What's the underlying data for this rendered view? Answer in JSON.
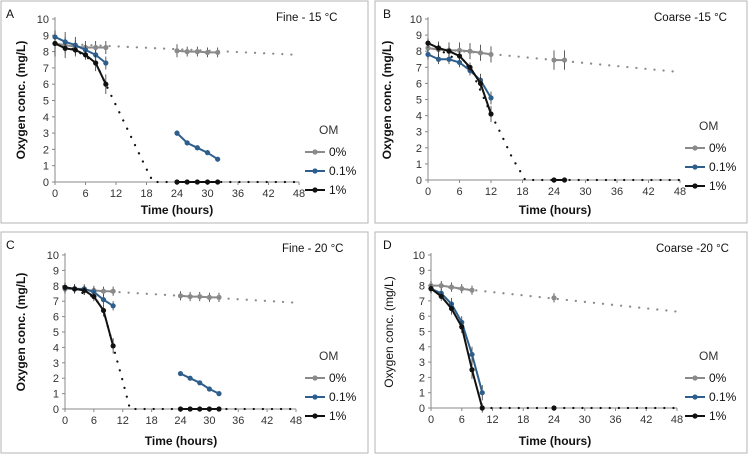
{
  "colors": {
    "s0": "#8a8a8a",
    "s01": "#2e5f8c",
    "s1": "#111111",
    "frame": "#b5b5b5"
  },
  "chart_data": [
    {
      "panel": "A",
      "title": "Fine -  15 °C",
      "type": "line",
      "xlabel": "Time (hours)",
      "ylabel": "Oxygen conc. (mg/L)",
      "xlim": [
        0,
        48
      ],
      "ylim": [
        0,
        10
      ],
      "xticks": [
        0,
        6,
        12,
        18,
        24,
        30,
        36,
        42,
        48
      ],
      "yticks": [
        0,
        1,
        2,
        3,
        4,
        5,
        6,
        7,
        8,
        9,
        10
      ],
      "legend_title": "OM",
      "series": [
        {
          "name": "0%",
          "key": "s0",
          "segments": [
            [
              [
                0,
                8.5
              ],
              [
                2,
                8.4
              ],
              [
                4,
                8.3
              ],
              [
                6,
                8.25
              ],
              [
                8,
                8.25
              ],
              [
                10,
                8.25
              ]
            ],
            [
              [
                24,
                8.05
              ],
              [
                26,
                8.0
              ],
              [
                28,
                8.0
              ],
              [
                30,
                7.95
              ],
              [
                32,
                7.95
              ]
            ]
          ],
          "trend": [
            [
              0,
              8.5
            ],
            [
              48,
              7.8
            ]
          ],
          "errors": [
            8,
            8,
            6,
            4,
            4,
            4,
            4,
            3,
            3,
            3,
            3
          ]
        },
        {
          "name": "0.1%",
          "key": "s01",
          "segments": [
            [
              [
                0,
                8.9
              ],
              [
                2,
                8.6
              ],
              [
                4,
                8.4
              ],
              [
                6,
                8.1
              ],
              [
                8,
                7.8
              ],
              [
                10,
                7.3
              ]
            ],
            [
              [
                24,
                3.0
              ],
              [
                26,
                2.4
              ],
              [
                28,
                2.1
              ],
              [
                30,
                1.8
              ],
              [
                32,
                1.4
              ]
            ]
          ],
          "trend": null,
          "errors": [
            3,
            3,
            3,
            3,
            3,
            4,
            1.7,
            1.4,
            1.4,
            1.3,
            0.7
          ]
        },
        {
          "name": "1%",
          "key": "s1",
          "segments": [
            [
              [
                0,
                8.5
              ],
              [
                2,
                8.2
              ],
              [
                4,
                8.1
              ],
              [
                6,
                7.8
              ],
              [
                8,
                7.3
              ],
              [
                10,
                6.0
              ]
            ],
            [
              [
                24,
                0
              ],
              [
                26,
                0
              ],
              [
                28,
                0
              ],
              [
                30,
                0
              ],
              [
                32,
                0
              ]
            ]
          ],
          "trend": [
            [
              0,
              8.5
            ],
            [
              4,
              8.1
            ],
            [
              8,
              7.3
            ],
            [
              10,
              6.0
            ],
            [
              12,
              4.7
            ],
            [
              14,
              3.4
            ],
            [
              16,
              2.1
            ],
            [
              18,
              0.8
            ],
            [
              19.3,
              0
            ],
            [
              48,
              0
            ]
          ],
          "errors": [
            3,
            3,
            3,
            3,
            5,
            6,
            0,
            0,
            0,
            0,
            0
          ]
        }
      ]
    },
    {
      "panel": "B",
      "title": "Coarse -15 °C",
      "type": "line",
      "xlabel": "Time (hours)",
      "ylabel": "Oxygen conc. (mg/L)",
      "xlim": [
        0,
        48
      ],
      "ylim": [
        0,
        10
      ],
      "xticks": [
        0,
        6,
        12,
        18,
        24,
        30,
        36,
        42,
        48
      ],
      "yticks": [
        0,
        1,
        2,
        3,
        4,
        5,
        6,
        7,
        8,
        9,
        10
      ],
      "legend_title": "OM",
      "series": [
        {
          "name": "0%",
          "key": "s0",
          "segments": [
            [
              [
                0,
                8.2
              ],
              [
                2,
                8.1
              ],
              [
                4,
                8.05
              ],
              [
                6,
                8.05
              ],
              [
                8,
                8.0
              ],
              [
                10,
                7.9
              ],
              [
                12,
                7.8
              ]
            ],
            [
              [
                24,
                7.45
              ],
              [
                26,
                7.45
              ]
            ]
          ],
          "trend": [
            [
              0,
              8.2
            ],
            [
              48,
              6.7
            ]
          ],
          "errors": [
            5,
            5,
            5,
            5,
            5,
            5,
            5,
            6,
            6
          ]
        },
        {
          "name": "0.1%",
          "key": "s01",
          "segments": [
            [
              [
                0,
                7.8
              ],
              [
                2,
                7.5
              ],
              [
                4,
                7.5
              ],
              [
                6,
                7.3
              ],
              [
                8,
                6.8
              ],
              [
                10,
                6.2
              ],
              [
                12,
                5.1
              ]
            ]
          ],
          "trend": null,
          "errors": [
            3,
            3,
            3,
            3,
            3,
            4,
            4
          ]
        },
        {
          "name": "1%",
          "key": "s1",
          "segments": [
            [
              [
                0,
                8.5
              ],
              [
                2,
                8.2
              ],
              [
                4,
                8.0
              ],
              [
                6,
                7.7
              ],
              [
                8,
                7.0
              ],
              [
                10,
                6.0
              ],
              [
                12,
                4.1
              ]
            ],
            [
              [
                24,
                0
              ],
              [
                26,
                0
              ]
            ]
          ],
          "trend": [
            [
              0,
              8.5
            ],
            [
              8,
              7.0
            ],
            [
              12,
              4.1
            ],
            [
              14,
              2.8
            ],
            [
              16,
              1.4
            ],
            [
              18,
              0.3
            ],
            [
              18.5,
              0
            ],
            [
              48,
              0
            ]
          ],
          "errors": [
            3,
            3,
            3,
            3,
            3,
            4,
            5,
            0,
            0
          ]
        }
      ]
    },
    {
      "panel": "C",
      "title": "Fine - 20 °C",
      "type": "line",
      "xlabel": "Time (hours)",
      "ylabel": "Oxygen conc.  (mg/L)",
      "xlim": [
        0,
        48
      ],
      "ylim": [
        0,
        10
      ],
      "xticks": [
        0,
        6,
        12,
        18,
        24,
        30,
        36,
        42,
        48
      ],
      "yticks": [
        0,
        1,
        2,
        3,
        4,
        5,
        6,
        7,
        8,
        9,
        10
      ],
      "legend_title": "OM",
      "series": [
        {
          "name": "0%",
          "key": "s0",
          "segments": [
            [
              [
                0,
                7.8
              ],
              [
                2,
                7.8
              ],
              [
                4,
                7.7
              ],
              [
                6,
                7.7
              ],
              [
                8,
                7.65
              ],
              [
                10,
                7.65
              ]
            ],
            [
              [
                24,
                7.35
              ],
              [
                26,
                7.3
              ],
              [
                28,
                7.3
              ],
              [
                30,
                7.25
              ],
              [
                32,
                7.25
              ]
            ]
          ],
          "trend": [
            [
              0,
              7.8
            ],
            [
              48,
              6.9
            ]
          ],
          "errors": [
            3,
            3,
            3,
            3,
            3,
            3,
            3,
            3,
            3,
            3,
            3
          ]
        },
        {
          "name": "0.1%",
          "key": "s01",
          "segments": [
            [
              [
                0,
                7.9
              ],
              [
                2,
                7.8
              ],
              [
                4,
                7.8
              ],
              [
                6,
                7.6
              ],
              [
                8,
                7.1
              ],
              [
                10,
                6.7
              ]
            ],
            [
              [
                24,
                2.3
              ],
              [
                26,
                2.0
              ],
              [
                28,
                1.7
              ],
              [
                30,
                1.3
              ],
              [
                32,
                1.0
              ]
            ]
          ],
          "trend": null,
          "errors": [
            3,
            3,
            3,
            3,
            3,
            3,
            0.5,
            0.5,
            0.4,
            0.4,
            0.5
          ]
        },
        {
          "name": "1%",
          "key": "s1",
          "segments": [
            [
              [
                0,
                7.9
              ],
              [
                2,
                7.8
              ],
              [
                4,
                7.7
              ],
              [
                6,
                7.3
              ],
              [
                8,
                6.4
              ],
              [
                10,
                4.1
              ]
            ],
            [
              [
                24,
                0
              ],
              [
                26,
                0
              ],
              [
                28,
                0
              ],
              [
                30,
                0
              ],
              [
                32,
                0
              ]
            ]
          ],
          "trend": [
            [
              0,
              7.9
            ],
            [
              6,
              7.3
            ],
            [
              8,
              6.4
            ],
            [
              10,
              4.1
            ],
            [
              12,
              1.8
            ],
            [
              13.5,
              0
            ],
            [
              48,
              0
            ]
          ],
          "errors": [
            3,
            3,
            3,
            3,
            4,
            5,
            0,
            0,
            0,
            0,
            0
          ]
        }
      ]
    },
    {
      "panel": "D",
      "title": "Coarse -20 °C",
      "type": "line",
      "xlabel": "Time (hours)",
      "ylabel": "Oxygen conc. (mg/L)",
      "xlim": [
        0,
        48
      ],
      "ylim": [
        0,
        10
      ],
      "xticks": [
        0,
        6,
        12,
        18,
        24,
        30,
        36,
        42,
        48
      ],
      "yticks": [
        0,
        1,
        2,
        3,
        4,
        5,
        6,
        7,
        8,
        9,
        10
      ],
      "legend_title": "OM",
      "series": [
        {
          "name": "0%",
          "key": "s0",
          "segments": [
            [
              [
                0,
                8.0
              ],
              [
                2,
                8.0
              ],
              [
                4,
                7.9
              ],
              [
                6,
                7.8
              ],
              [
                8,
                7.7
              ]
            ],
            [
              [
                24,
                7.2
              ]
            ]
          ],
          "trend": [
            [
              0,
              8.0
            ],
            [
              48,
              6.3
            ]
          ],
          "errors": [
            3,
            3,
            3,
            3,
            3,
            3
          ]
        },
        {
          "name": "0.1%",
          "key": "s01",
          "segments": [
            [
              [
                0,
                7.8
              ],
              [
                2,
                7.5
              ],
              [
                4,
                6.8
              ],
              [
                6,
                5.6
              ],
              [
                8,
                3.5
              ],
              [
                10,
                1.0
              ]
            ]
          ],
          "trend": null,
          "errors": [
            3,
            3,
            4,
            4,
            5,
            5
          ]
        },
        {
          "name": "1%",
          "key": "s1",
          "segments": [
            [
              [
                0,
                7.8
              ],
              [
                2,
                7.3
              ],
              [
                4,
                6.5
              ],
              [
                6,
                5.3
              ],
              [
                8,
                2.5
              ],
              [
                10,
                0
              ]
            ],
            [
              [
                24,
                0
              ]
            ]
          ],
          "trend": [
            [
              10,
              0
            ],
            [
              48,
              0
            ]
          ],
          "errors": [
            3,
            3,
            4,
            4,
            6,
            3,
            0
          ]
        }
      ]
    }
  ]
}
